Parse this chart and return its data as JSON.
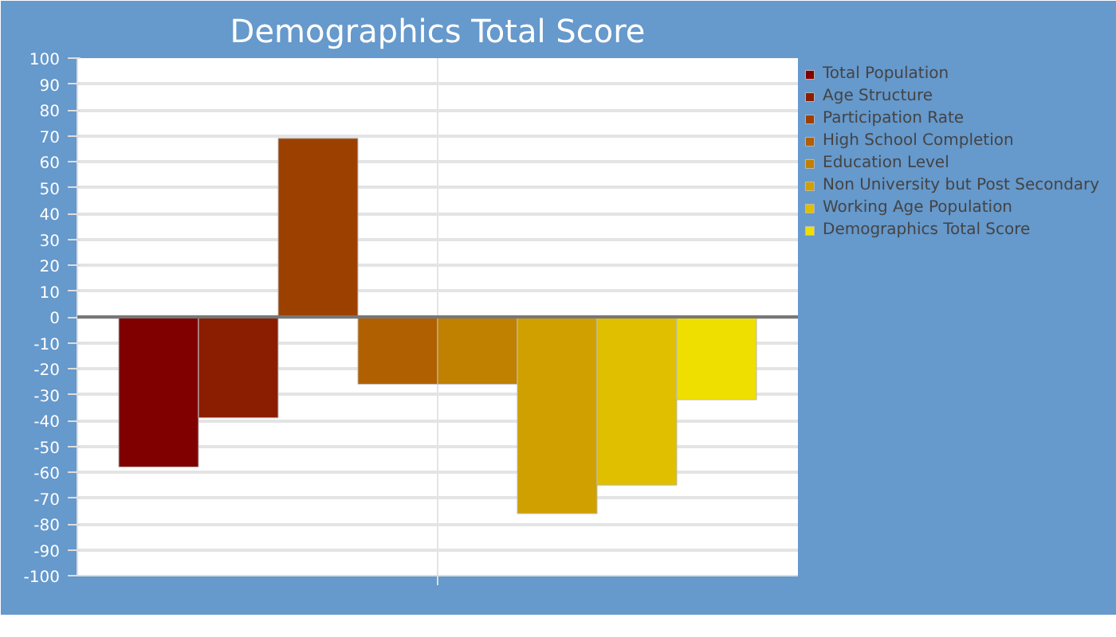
{
  "chart_data": {
    "type": "bar",
    "title": "Demographics Total Score",
    "categories": [
      null
    ],
    "series": [
      {
        "name": "Total Population",
        "color": "#800000",
        "values": [
          -58
        ]
      },
      {
        "name": "Age Structure",
        "color": "#8b1e00",
        "values": [
          -39
        ]
      },
      {
        "name": "Participation Rate",
        "color": "#9c4000",
        "values": [
          69
        ]
      },
      {
        "name": "High School Completion",
        "color": "#b06000",
        "values": [
          -26
        ]
      },
      {
        "name": "Education Level",
        "color": "#c08000",
        "values": [
          -26
        ]
      },
      {
        "name": "Non University but Post Secondary",
        "color": "#d0a000",
        "values": [
          -76
        ]
      },
      {
        "name": "Working Age Population",
        "color": "#e0bf00",
        "values": [
          -65
        ]
      },
      {
        "name": "Demographics Total Score",
        "color": "#eedf00",
        "values": [
          -32
        ]
      }
    ],
    "ylim": [
      -100,
      100
    ],
    "yticks": [
      -100,
      -90,
      -80,
      -70,
      -60,
      -50,
      -40,
      -30,
      -20,
      -10,
      0,
      10,
      20,
      30,
      40,
      50,
      60,
      70,
      80,
      90,
      100
    ],
    "grid": true,
    "legend": "right"
  }
}
